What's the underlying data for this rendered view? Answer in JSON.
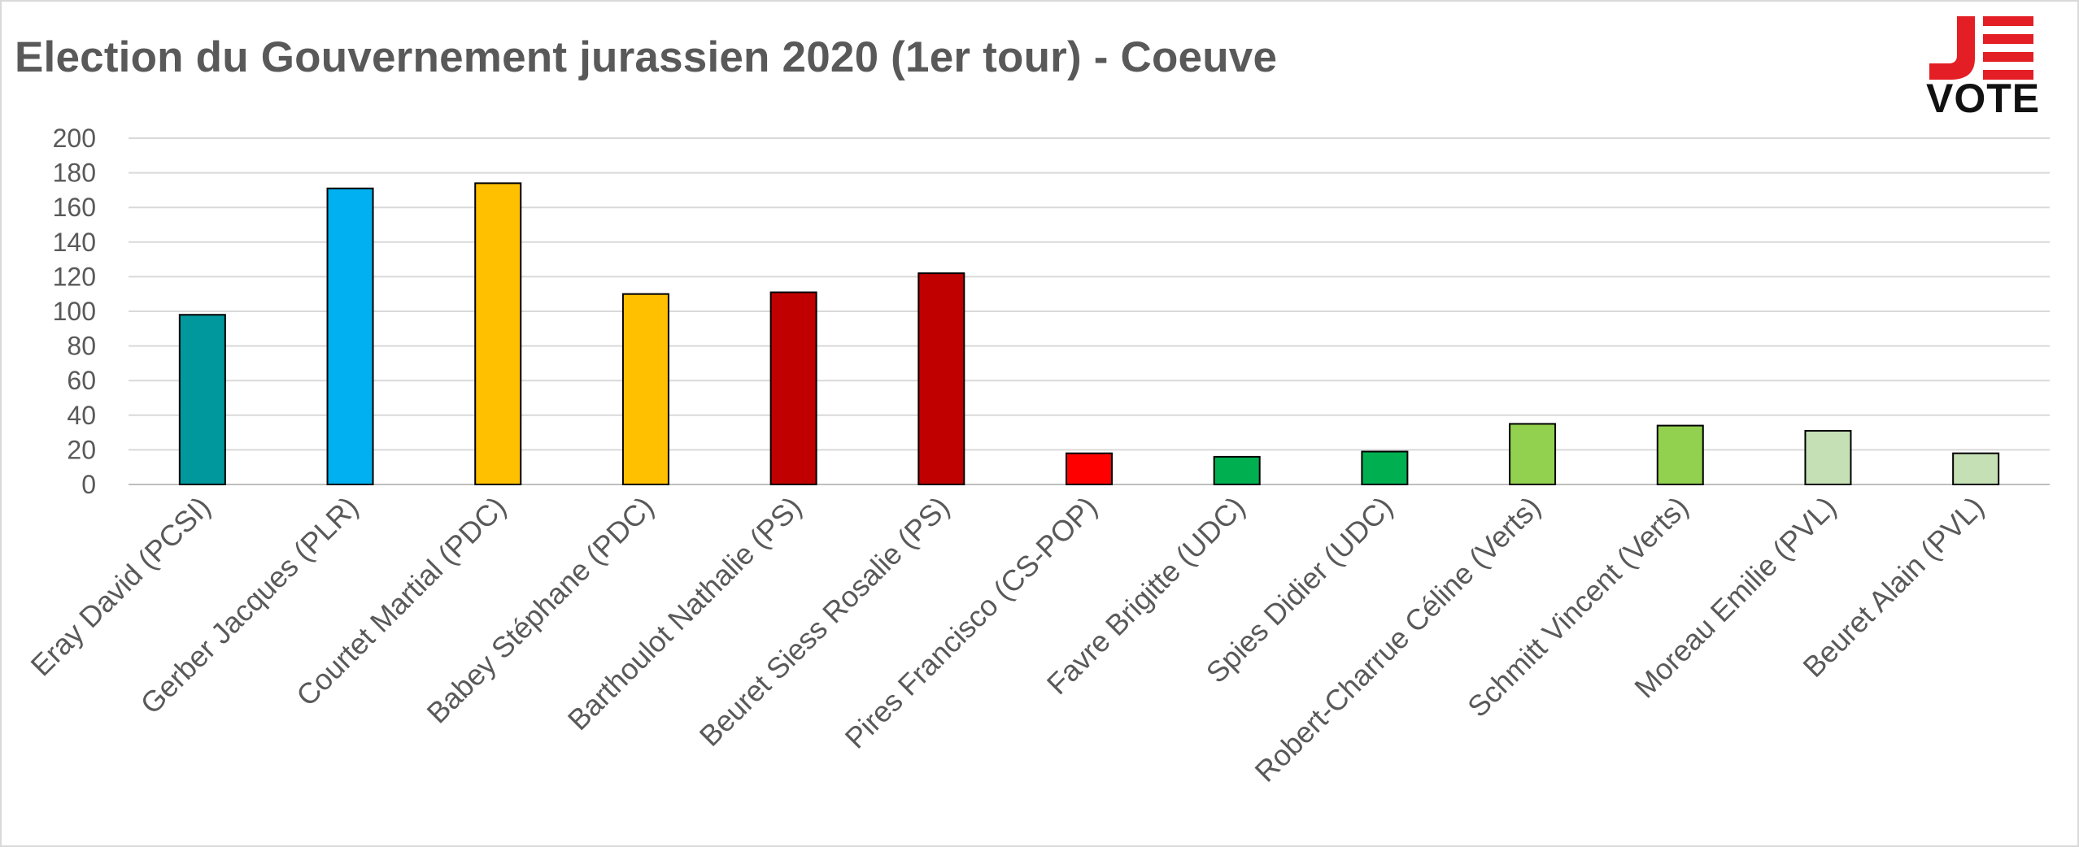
{
  "logo": {
    "text": "VOTE",
    "mark": "JE",
    "colors": {
      "red": "#e31e24",
      "dark": "#111111"
    }
  },
  "chart_data": {
    "type": "bar",
    "title": "Election du Gouvernement jurassien 2020 (1er tour) - Coeuve",
    "xlabel": "",
    "ylabel": "",
    "ylim": [
      0,
      200
    ],
    "yticks": [
      "0",
      "20",
      "40",
      "60",
      "80",
      "100",
      "120",
      "140",
      "160",
      "180",
      "200"
    ],
    "grid": true,
    "legend": "none",
    "categories": [
      "Eray David (PCSI)",
      "Gerber Jacques (PLR)",
      "Courtet Martial (PDC)",
      "Babey Stéphane (PDC)",
      "Barthoulot Nathalie (PS)",
      "Beuret Siess Rosalie (PS)",
      "Pires Francisco (CS-POP)",
      "Favre Brigitte (UDC)",
      "Spies Didier (UDC)",
      "Robert-Charrue Céline (Verts)",
      "Schmitt Vincent (Verts)",
      "Moreau Emilie (PVL)",
      "Beuret Alain (PVL)"
    ],
    "values": [
      98,
      171,
      174,
      110,
      111,
      122,
      18,
      16,
      19,
      35,
      34,
      31,
      18
    ],
    "colors": [
      "#00979d",
      "#00b0f0",
      "#ffc000",
      "#ffc000",
      "#c00000",
      "#c00000",
      "#ff0000",
      "#00b050",
      "#00b050",
      "#92d050",
      "#92d050",
      "#c5e0b4",
      "#c5e0b4"
    ]
  }
}
